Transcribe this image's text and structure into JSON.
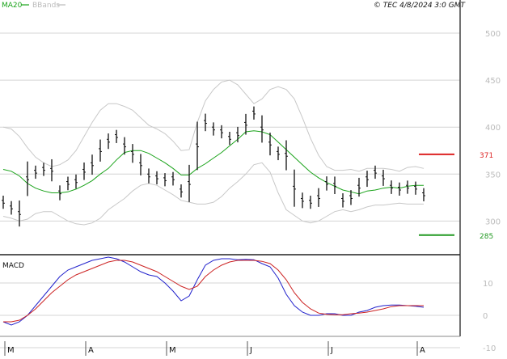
{
  "header": {
    "legend": [
      {
        "label": "MA20",
        "color": "#1aa31a"
      },
      {
        "label": "BBands",
        "color": "#bbbbbb"
      }
    ],
    "copyright": "© TEC 4/8/2024 3:0 GMT"
  },
  "chart_data": [
    {
      "type": "ohlc",
      "ylim": [
        265,
        525
      ],
      "yticks": [
        "500",
        "450",
        "400",
        "350",
        "300"
      ],
      "ytick_values": [
        500,
        450,
        400,
        350,
        300
      ],
      "levels": [
        {
          "label": "371",
          "value": 371,
          "color": "#dd2222"
        },
        {
          "label": "285",
          "value": 285,
          "color": "#229922"
        }
      ],
      "price_mid": [
        320,
        314,
        308,
        345,
        352,
        355,
        354,
        330,
        340,
        342,
        353,
        360,
        375,
        385,
        390,
        380,
        372,
        360,
        348,
        346,
        344,
        345,
        332,
        340,
        380,
        405,
        398,
        395,
        388,
        392,
        403,
        415,
        398,
        382,
        372,
        370,
        335,
        322,
        320,
        325,
        340,
        338,
        322,
        325,
        336,
        345,
        352,
        346,
        336,
        334,
        336,
        335,
        328
      ],
      "ma20": [
        355,
        353,
        348,
        340,
        335,
        332,
        330,
        330,
        331,
        334,
        338,
        343,
        350,
        356,
        365,
        373,
        375,
        375,
        372,
        367,
        362,
        356,
        349,
        349,
        356,
        361,
        367,
        373,
        380,
        387,
        395,
        396,
        395,
        392,
        384,
        376,
        368,
        360,
        352,
        346,
        341,
        337,
        333,
        331,
        329,
        332,
        333,
        335,
        336,
        335,
        337,
        338,
        338
      ],
      "bb_upper": [
        400,
        398,
        390,
        378,
        368,
        362,
        358,
        360,
        365,
        375,
        390,
        405,
        418,
        425,
        425,
        422,
        418,
        410,
        402,
        398,
        393,
        385,
        375,
        376,
        405,
        428,
        440,
        448,
        450,
        445,
        435,
        425,
        430,
        440,
        443,
        440,
        430,
        410,
        388,
        370,
        358,
        354,
        354,
        355,
        353,
        356,
        356,
        356,
        355,
        353,
        357,
        358,
        356
      ],
      "bb_lower": [
        305,
        303,
        300,
        302,
        308,
        310,
        310,
        305,
        300,
        297,
        296,
        298,
        303,
        312,
        318,
        324,
        332,
        338,
        340,
        338,
        333,
        328,
        322,
        320,
        318,
        318,
        320,
        326,
        335,
        342,
        350,
        360,
        362,
        352,
        330,
        312,
        306,
        300,
        298,
        300,
        305,
        310,
        312,
        310,
        312,
        315,
        317,
        317,
        318,
        319,
        318,
        318,
        318
      ]
    },
    {
      "type": "line",
      "title": "MACD",
      "ylim": [
        -6,
        18
      ],
      "yticks": [
        "10",
        "0",
        "-10"
      ],
      "ytick_values": [
        10,
        0,
        -10
      ],
      "series": [
        {
          "color": "#2222cc",
          "values": [
            -2,
            -3,
            -2,
            0,
            3,
            6,
            9,
            12,
            14,
            15,
            16,
            17,
            17.5,
            18,
            17.5,
            16.5,
            15,
            13.5,
            12.5,
            12,
            10,
            7.5,
            4.5,
            6,
            11,
            15.5,
            17,
            17.5,
            17.5,
            17.2,
            17.3,
            17.2,
            16,
            15,
            11.5,
            6.5,
            3,
            1,
            0,
            0,
            0.5,
            0.5,
            0,
            0,
            1,
            1.5,
            2.5,
            3,
            3.2,
            3.2,
            3,
            2.8,
            2.5
          ]
        },
        {
          "color": "#cc2222",
          "values": [
            -2,
            -2,
            -1.5,
            0,
            2,
            4.5,
            7,
            9,
            11,
            12.5,
            13.5,
            14.5,
            15.5,
            16.5,
            17,
            17,
            16.5,
            15.5,
            14.5,
            13.5,
            12,
            10.5,
            9,
            8,
            9,
            12,
            14,
            15.5,
            16.5,
            17,
            17,
            17,
            16.7,
            16,
            14,
            11,
            7,
            4,
            2,
            0.7,
            0.3,
            0.2,
            0.2,
            0.5,
            0.7,
            1,
            1.5,
            2,
            2.7,
            3,
            3,
            3,
            3
          ]
        }
      ]
    }
  ],
  "xaxis": {
    "labels": [
      {
        "label": "M",
        "index": 0
      },
      {
        "label": "A",
        "index": 10
      },
      {
        "label": "M",
        "index": 20
      },
      {
        "label": "J",
        "index": 30
      },
      {
        "label": "J",
        "index": 40
      },
      {
        "label": "A",
        "index": 51
      }
    ]
  }
}
